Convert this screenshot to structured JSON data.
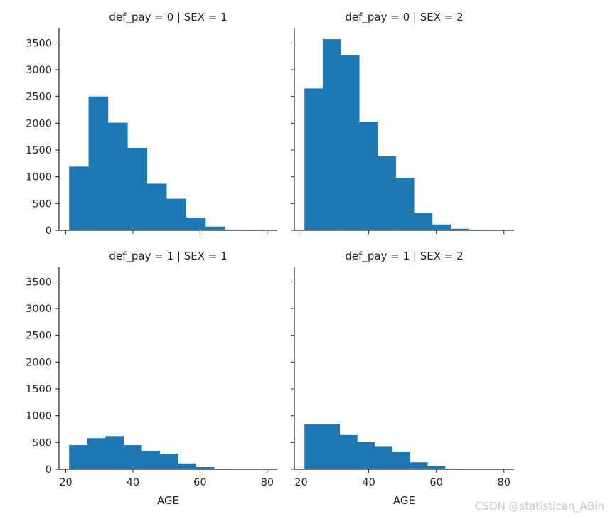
{
  "chart_data": [
    {
      "type": "bar",
      "title": "def_pay = 0 | SEX = 1",
      "xlabel": "",
      "ylabel": "",
      "bin_edges": [
        21,
        26.8,
        32.6,
        38.4,
        44.2,
        50,
        55.8,
        61.6,
        67.4,
        73.2,
        79
      ],
      "values": [
        1190,
        2500,
        2010,
        1540,
        870,
        590,
        240,
        70,
        15,
        10
      ],
      "xlim": [
        18,
        83
      ],
      "ylim": [
        0,
        3770
      ],
      "xticks": [
        20,
        40,
        60,
        80
      ],
      "yticks": [
        0,
        500,
        1000,
        1500,
        2000,
        2500,
        3000,
        3500
      ],
      "xtick_labels_visible": false,
      "ytick_labels_visible": true
    },
    {
      "type": "bar",
      "title": "def_pay = 0 | SEX = 2",
      "xlabel": "",
      "ylabel": "",
      "bin_edges": [
        21,
        26.4,
        31.8,
        37.2,
        42.6,
        48,
        53.4,
        58.8,
        64.2,
        69.6,
        75
      ],
      "values": [
        2650,
        3570,
        3270,
        2030,
        1380,
        980,
        330,
        110,
        30,
        10
      ],
      "xlim": [
        18,
        83
      ],
      "ylim": [
        0,
        3770
      ],
      "xticks": [
        20,
        40,
        60,
        80
      ],
      "yticks": [
        0,
        500,
        1000,
        1500,
        2000,
        2500,
        3000,
        3500
      ],
      "xtick_labels_visible": false,
      "ytick_labels_visible": false
    },
    {
      "type": "bar",
      "title": "def_pay = 1 | SEX = 1",
      "xlabel": "AGE",
      "ylabel": "",
      "bin_edges": [
        21,
        26.4,
        31.8,
        37.2,
        42.6,
        48,
        53.4,
        58.8,
        64.2,
        69.6,
        75
      ],
      "values": [
        450,
        580,
        620,
        450,
        340,
        290,
        110,
        40,
        10,
        5
      ],
      "xlim": [
        18,
        83
      ],
      "ylim": [
        0,
        3770
      ],
      "xticks": [
        20,
        40,
        60,
        80
      ],
      "yticks": [
        0,
        500,
        1000,
        1500,
        2000,
        2500,
        3000,
        3500
      ],
      "xtick_labels_visible": true,
      "ytick_labels_visible": true
    },
    {
      "type": "bar",
      "title": "def_pay = 1 | SEX = 2",
      "xlabel": "AGE",
      "ylabel": "",
      "bin_edges": [
        21,
        26.2,
        31.4,
        36.6,
        41.8,
        47,
        52.2,
        57.4,
        62.6,
        67.8,
        73
      ],
      "values": [
        840,
        840,
        640,
        510,
        420,
        320,
        130,
        60,
        10,
        5
      ],
      "xlim": [
        18,
        83
      ],
      "ylim": [
        0,
        3770
      ],
      "xticks": [
        20,
        40,
        60,
        80
      ],
      "yticks": [
        0,
        500,
        1000,
        1500,
        2000,
        2500,
        3000,
        3500
      ],
      "xtick_labels_visible": true,
      "ytick_labels_visible": false
    }
  ],
  "colors": {
    "bar": "#1f77b4",
    "axis": "#262626"
  },
  "watermark": "CSDN @statistican_ABin"
}
